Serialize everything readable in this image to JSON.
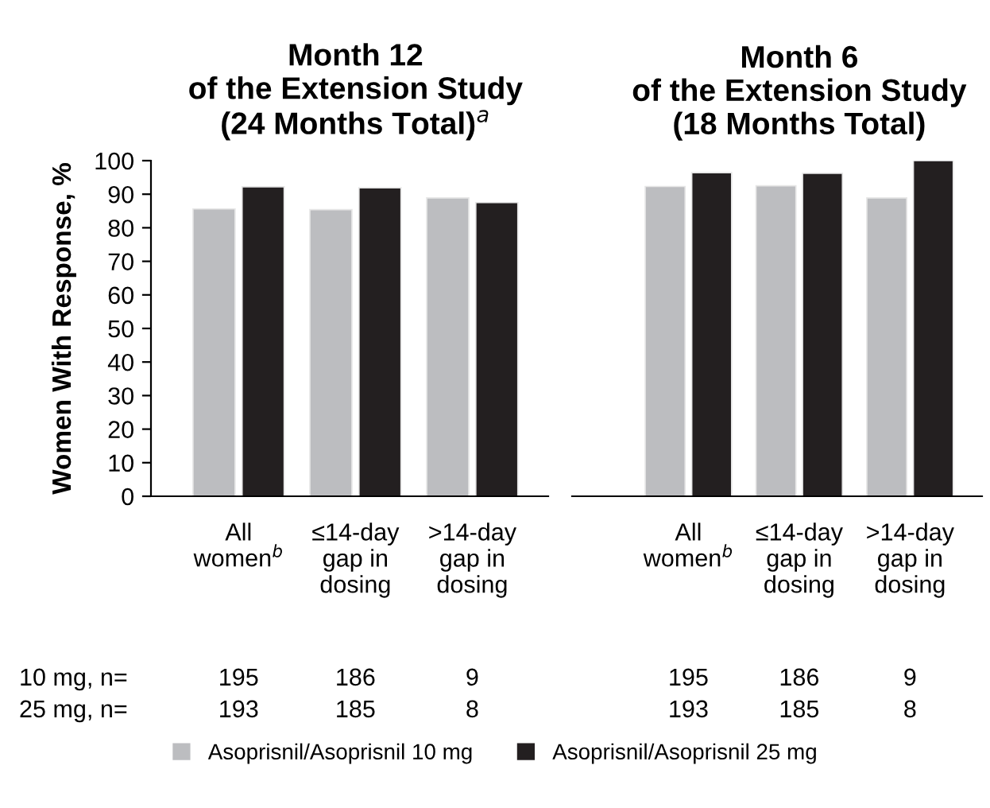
{
  "chart_data": [
    {
      "type": "bar",
      "title": "Month 12\nof the Extension Study\n(24 Months Total)$^{a}$",
      "ylabel": "Women With Response, %",
      "categories": [
        "All\nwomen$^{b}$",
        "≤14-day\ngap in\ndosing",
        ">14-day\ngap in\ndosing"
      ],
      "series": [
        {
          "name": "Asoprisnil/Asoprisnil 10 mg",
          "color": "#bcbdc0",
          "values": [
            85.6,
            85.4,
            88.9
          ]
        },
        {
          "name": "Asoprisnil/Asoprisnil 25 mg",
          "color": "#231f20",
          "values": [
            92.2,
            91.9,
            87.5
          ]
        }
      ],
      "ylim": [
        0,
        100
      ],
      "yticks": [
        0,
        10,
        20,
        30,
        40,
        50,
        60,
        70,
        80,
        90,
        100
      ],
      "legend": "bottom",
      "annotations": [
        "10 mg, n=",
        "25 mg, n=",
        "195",
        "186",
        "9",
        "193",
        "185",
        "8"
      ]
    },
    {
      "type": "bar",
      "title": "Month 6\nof the Extension Study\n(18 Months Total)",
      "categories": [
        "All\nwomen$^{b}$",
        "≤14-day\ngap in\ndosing",
        ">14-day\ngap in\ndosing"
      ],
      "series": [
        {
          "color": "#bcbdc0",
          "values": [
            92.3,
            92.5,
            88.9
          ]
        },
        {
          "color": "#231f20",
          "values": [
            96.4,
            96.2,
            100
          ]
        }
      ],
      "ylim": [
        0,
        100
      ],
      "tick_labels": "x",
      "annotations": [
        "195",
        "186",
        "9",
        "193",
        "185",
        "8"
      ]
    }
  ]
}
